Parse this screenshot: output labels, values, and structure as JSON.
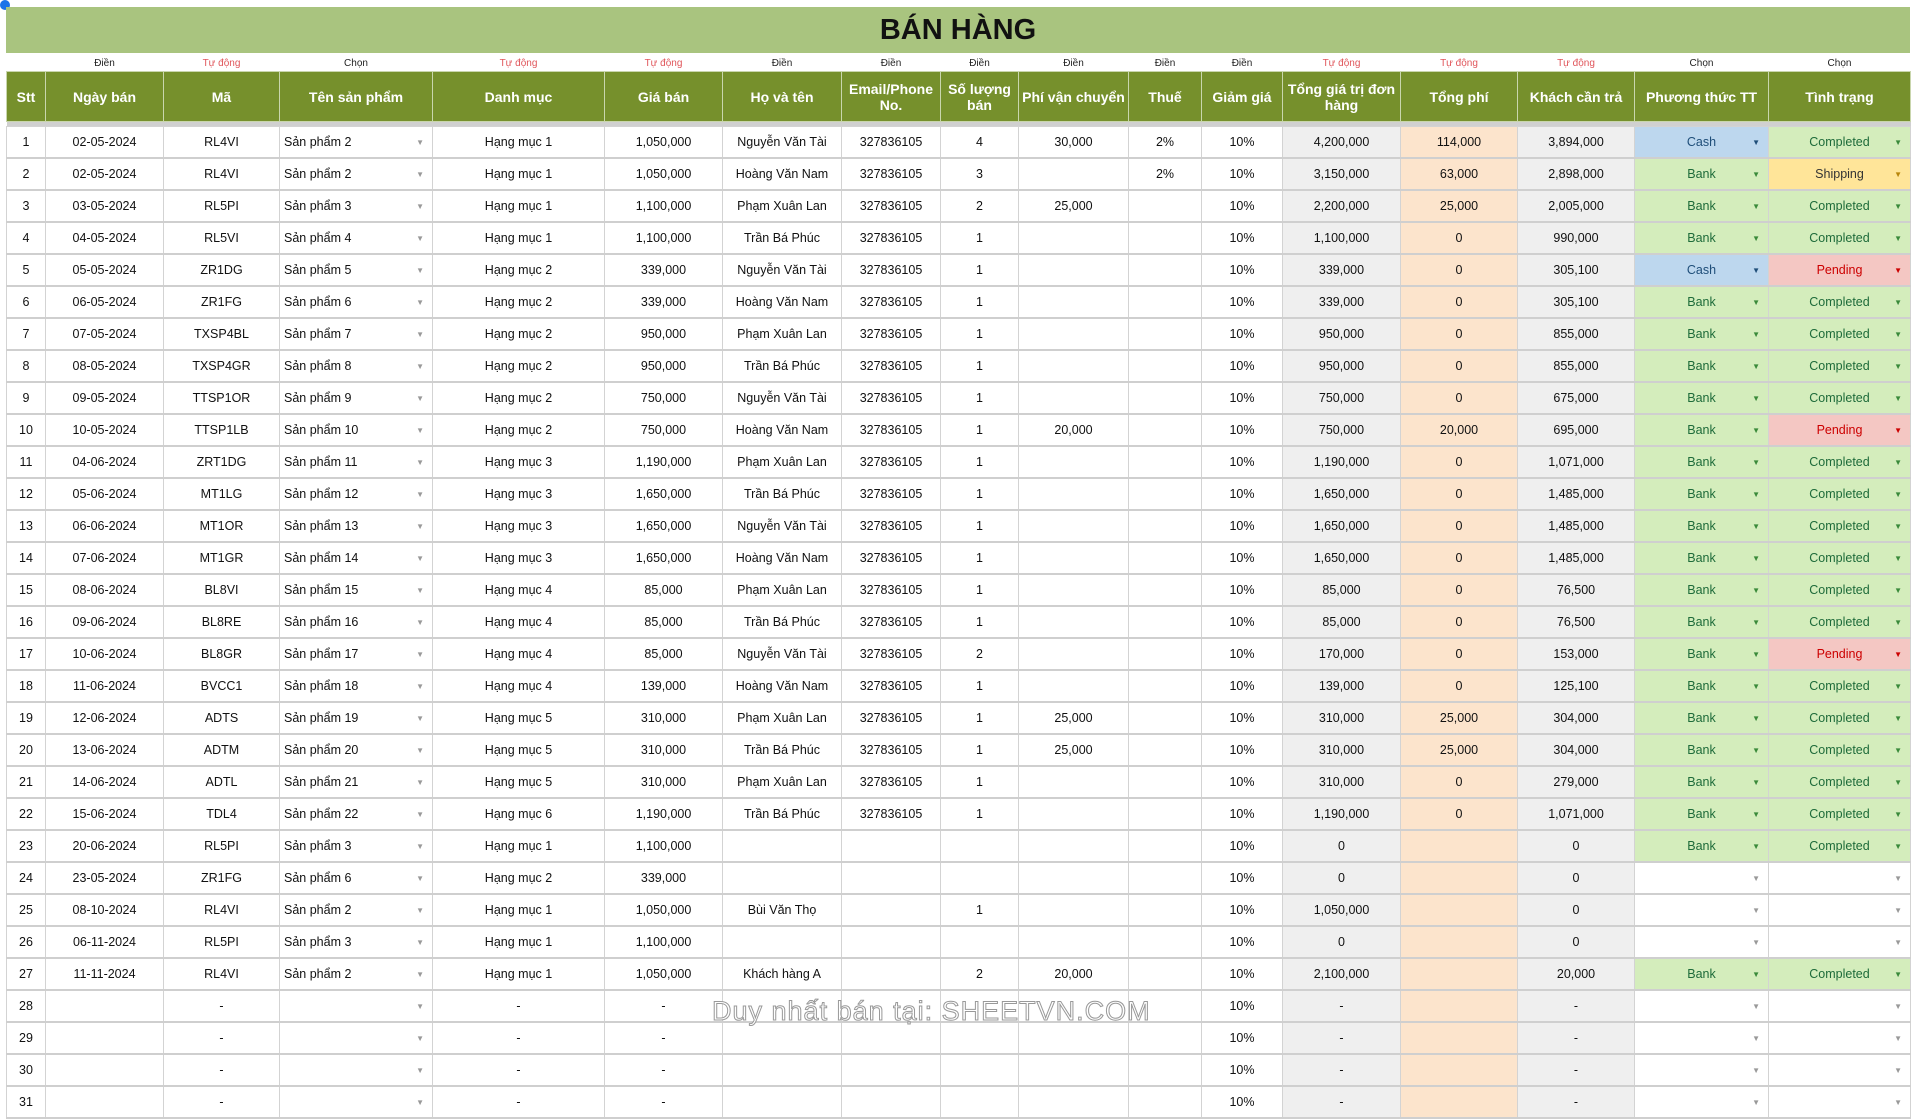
{
  "title": "BÁN HÀNG",
  "hints": [
    "",
    "Điền",
    "Tự động",
    "Chọn",
    "Tự động",
    "Tự động",
    "Điền",
    "Điền",
    "Điền",
    "Điền",
    "Điền",
    "Điền",
    "Tự động",
    "Tự động",
    "Tự động",
    "Chọn",
    "Chọn"
  ],
  "headers": [
    "Stt",
    "Ngày bán",
    "Mã",
    "Tên sản phẩm",
    "Danh mục",
    "Giá bán",
    "Họ và tên",
    "Email/Phone No.",
    "Số lượng bán",
    "Phí vận chuyển",
    "Thuế",
    "Giảm giá",
    "Tổng giá trị đơn hàng",
    "Tổng phí",
    "Khách cần trả",
    "Phương thức TT",
    "Tình trạng"
  ],
  "colors": {
    "title_bg": "#a9c47f",
    "header_bg": "#76902c",
    "auto_hint": "#e0555a",
    "cash": "#bdd7ee",
    "bank": "#d4edbc",
    "completed": "#d4edbc",
    "shipping": "#ffe599",
    "pending": "#f4c7c3",
    "fee_col": "#fce4cc",
    "calc_col": "#efefef"
  },
  "dropdown_icon": "caret-down-icon",
  "rows": [
    [
      "1",
      "02-05-2024",
      "RL4VI",
      "Sản phẩm 2",
      "Hạng mục 1",
      "1,050,000",
      "Nguyễn Văn Tài",
      "327836105",
      "4",
      "30,000",
      "2%",
      "10%",
      "4,200,000",
      "114,000",
      "3,894,000",
      "Cash",
      "Completed"
    ],
    [
      "2",
      "02-05-2024",
      "RL4VI",
      "Sản phẩm 2",
      "Hạng mục 1",
      "1,050,000",
      "Hoàng Văn Nam",
      "327836105",
      "3",
      "",
      "2%",
      "10%",
      "3,150,000",
      "63,000",
      "2,898,000",
      "Bank",
      "Shipping"
    ],
    [
      "3",
      "03-05-2024",
      "RL5PI",
      "Sản phẩm 3",
      "Hạng mục 1",
      "1,100,000",
      "Phạm Xuân Lan",
      "327836105",
      "2",
      "25,000",
      "",
      "10%",
      "2,200,000",
      "25,000",
      "2,005,000",
      "Bank",
      "Completed"
    ],
    [
      "4",
      "04-05-2024",
      "RL5VI",
      "Sản phẩm 4",
      "Hạng mục 1",
      "1,100,000",
      "Trần Bá Phúc",
      "327836105",
      "1",
      "",
      "",
      "10%",
      "1,100,000",
      "0",
      "990,000",
      "Bank",
      "Completed"
    ],
    [
      "5",
      "05-05-2024",
      "ZR1DG",
      "Sản phẩm 5",
      "Hạng mục 2",
      "339,000",
      "Nguyễn Văn Tài",
      "327836105",
      "1",
      "",
      "",
      "10%",
      "339,000",
      "0",
      "305,100",
      "Cash",
      "Pending"
    ],
    [
      "6",
      "06-05-2024",
      "ZR1FG",
      "Sản phẩm 6",
      "Hạng mục 2",
      "339,000",
      "Hoàng Văn Nam",
      "327836105",
      "1",
      "",
      "",
      "10%",
      "339,000",
      "0",
      "305,100",
      "Bank",
      "Completed"
    ],
    [
      "7",
      "07-05-2024",
      "TXSP4BL",
      "Sản phẩm 7",
      "Hạng mục 2",
      "950,000",
      "Phạm Xuân Lan",
      "327836105",
      "1",
      "",
      "",
      "10%",
      "950,000",
      "0",
      "855,000",
      "Bank",
      "Completed"
    ],
    [
      "8",
      "08-05-2024",
      "TXSP4GR",
      "Sản phẩm 8",
      "Hạng mục 2",
      "950,000",
      "Trần Bá Phúc",
      "327836105",
      "1",
      "",
      "",
      "10%",
      "950,000",
      "0",
      "855,000",
      "Bank",
      "Completed"
    ],
    [
      "9",
      "09-05-2024",
      "TTSP1OR",
      "Sản phẩm 9",
      "Hạng mục 2",
      "750,000",
      "Nguyễn Văn Tài",
      "327836105",
      "1",
      "",
      "",
      "10%",
      "750,000",
      "0",
      "675,000",
      "Bank",
      "Completed"
    ],
    [
      "10",
      "10-05-2024",
      "TTSP1LB",
      "Sản phẩm 10",
      "Hạng mục 2",
      "750,000",
      "Hoàng Văn Nam",
      "327836105",
      "1",
      "20,000",
      "",
      "10%",
      "750,000",
      "20,000",
      "695,000",
      "Bank",
      "Pending"
    ],
    [
      "11",
      "04-06-2024",
      "ZRT1DG",
      "Sản phẩm 11",
      "Hạng mục 3",
      "1,190,000",
      "Phạm Xuân Lan",
      "327836105",
      "1",
      "",
      "",
      "10%",
      "1,190,000",
      "0",
      "1,071,000",
      "Bank",
      "Completed"
    ],
    [
      "12",
      "05-06-2024",
      "MT1LG",
      "Sản phẩm 12",
      "Hạng mục 3",
      "1,650,000",
      "Trần Bá Phúc",
      "327836105",
      "1",
      "",
      "",
      "10%",
      "1,650,000",
      "0",
      "1,485,000",
      "Bank",
      "Completed"
    ],
    [
      "13",
      "06-06-2024",
      "MT1OR",
      "Sản phẩm 13",
      "Hạng mục 3",
      "1,650,000",
      "Nguyễn Văn Tài",
      "327836105",
      "1",
      "",
      "",
      "10%",
      "1,650,000",
      "0",
      "1,485,000",
      "Bank",
      "Completed"
    ],
    [
      "14",
      "07-06-2024",
      "MT1GR",
      "Sản phẩm 14",
      "Hạng mục 3",
      "1,650,000",
      "Hoàng Văn Nam",
      "327836105",
      "1",
      "",
      "",
      "10%",
      "1,650,000",
      "0",
      "1,485,000",
      "Bank",
      "Completed"
    ],
    [
      "15",
      "08-06-2024",
      "BL8VI",
      "Sản phẩm 15",
      "Hạng mục 4",
      "85,000",
      "Phạm Xuân Lan",
      "327836105",
      "1",
      "",
      "",
      "10%",
      "85,000",
      "0",
      "76,500",
      "Bank",
      "Completed"
    ],
    [
      "16",
      "09-06-2024",
      "BL8RE",
      "Sản phẩm 16",
      "Hạng mục 4",
      "85,000",
      "Trần Bá Phúc",
      "327836105",
      "1",
      "",
      "",
      "10%",
      "85,000",
      "0",
      "76,500",
      "Bank",
      "Completed"
    ],
    [
      "17",
      "10-06-2024",
      "BL8GR",
      "Sản phẩm 17",
      "Hạng mục 4",
      "85,000",
      "Nguyễn Văn Tài",
      "327836105",
      "2",
      "",
      "",
      "10%",
      "170,000",
      "0",
      "153,000",
      "Bank",
      "Pending"
    ],
    [
      "18",
      "11-06-2024",
      "BVCC1",
      "Sản phẩm 18",
      "Hạng mục 4",
      "139,000",
      "Hoàng Văn Nam",
      "327836105",
      "1",
      "",
      "",
      "10%",
      "139,000",
      "0",
      "125,100",
      "Bank",
      "Completed"
    ],
    [
      "19",
      "12-06-2024",
      "ADTS",
      "Sản phẩm 19",
      "Hạng mục 5",
      "310,000",
      "Phạm Xuân Lan",
      "327836105",
      "1",
      "25,000",
      "",
      "10%",
      "310,000",
      "25,000",
      "304,000",
      "Bank",
      "Completed"
    ],
    [
      "20",
      "13-06-2024",
      "ADTM",
      "Sản phẩm 20",
      "Hạng mục 5",
      "310,000",
      "Trần Bá Phúc",
      "327836105",
      "1",
      "25,000",
      "",
      "10%",
      "310,000",
      "25,000",
      "304,000",
      "Bank",
      "Completed"
    ],
    [
      "21",
      "14-06-2024",
      "ADTL",
      "Sản phẩm 21",
      "Hạng mục 5",
      "310,000",
      "Phạm Xuân Lan",
      "327836105",
      "1",
      "",
      "",
      "10%",
      "310,000",
      "0",
      "279,000",
      "Bank",
      "Completed"
    ],
    [
      "22",
      "15-06-2024",
      "TDL4",
      "Sản phẩm 22",
      "Hạng mục 6",
      "1,190,000",
      "Trần Bá Phúc",
      "327836105",
      "1",
      "",
      "",
      "10%",
      "1,190,000",
      "0",
      "1,071,000",
      "Bank",
      "Completed"
    ],
    [
      "23",
      "20-06-2024",
      "RL5PI",
      "Sản phẩm 3",
      "Hạng mục 1",
      "1,100,000",
      "",
      "",
      "",
      "",
      "",
      "10%",
      "0",
      "",
      "0",
      "Bank",
      "Completed"
    ],
    [
      "24",
      "23-05-2024",
      "ZR1FG",
      "Sản phẩm 6",
      "Hạng mục 2",
      "339,000",
      "",
      "",
      "",
      "",
      "",
      "10%",
      "0",
      "",
      "0",
      "",
      ""
    ],
    [
      "25",
      "08-10-2024",
      "RL4VI",
      "Sản phẩm 2",
      "Hạng mục 1",
      "1,050,000",
      "Bùi Văn Thọ",
      "",
      "1",
      "",
      "",
      "10%",
      "1,050,000",
      "",
      "0",
      "",
      ""
    ],
    [
      "26",
      "06-11-2024",
      "RL5PI",
      "Sản phẩm 3",
      "Hạng mục 1",
      "1,100,000",
      "",
      "",
      "",
      "",
      "",
      "10%",
      "0",
      "",
      "0",
      "",
      ""
    ],
    [
      "27",
      "11-11-2024",
      "RL4VI",
      "Sản phẩm 2",
      "Hạng mục 1",
      "1,050,000",
      "Khách hàng A",
      "",
      "2",
      "20,000",
      "",
      "10%",
      "2,100,000",
      "",
      "20,000",
      "Bank",
      "Completed"
    ],
    [
      "28",
      "",
      "-",
      "",
      "-",
      "-",
      "",
      "",
      "",
      "",
      "",
      "10%",
      "-",
      "",
      "-",
      "",
      ""
    ],
    [
      "29",
      "",
      "-",
      "",
      "-",
      "-",
      "",
      "",
      "",
      "",
      "",
      "10%",
      "-",
      "",
      "-",
      "",
      ""
    ],
    [
      "30",
      "",
      "-",
      "",
      "-",
      "-",
      "",
      "",
      "",
      "",
      "",
      "10%",
      "-",
      "",
      "-",
      "",
      ""
    ],
    [
      "31",
      "",
      "-",
      "",
      "-",
      "-",
      "",
      "",
      "",
      "",
      "",
      "10%",
      "-",
      "",
      "-",
      "",
      ""
    ]
  ],
  "watermark": "Duy nhất bán tại: SHEETVN.COM"
}
